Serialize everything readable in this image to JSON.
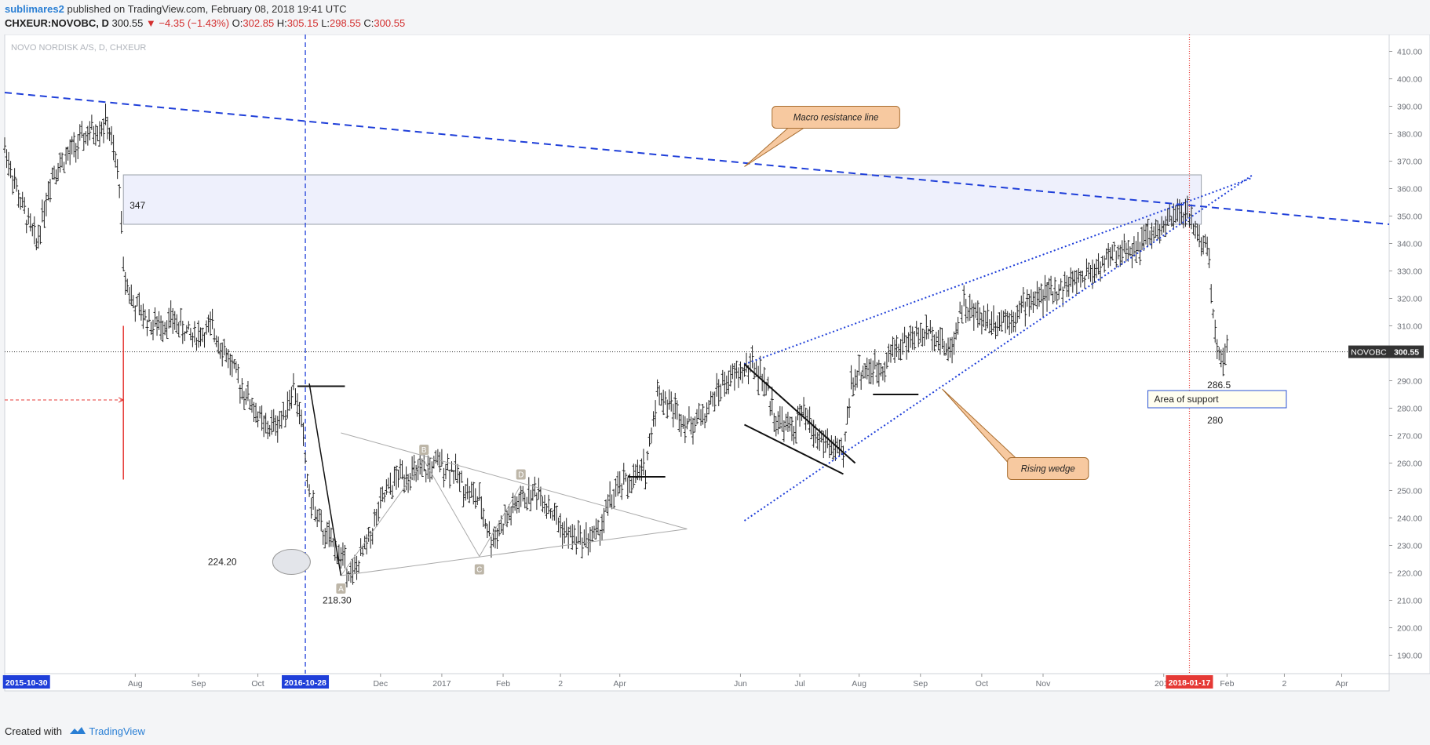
{
  "header": {
    "author": "sublimares2",
    "published": "published on TradingView.com, February 08, 2018 19:41 UTC",
    "symbol": "CHXEUR:NOVOBC, D",
    "last": "300.55",
    "change_arrow": "▼",
    "change": "−4.35 (−1.43%)",
    "o_label": "O:",
    "o": "302.85",
    "h_label": "H:",
    "h": "305.15",
    "l_label": "L:",
    "l": "298.55",
    "c_label": "C:",
    "c": "300.55"
  },
  "footer": {
    "created": "Created with",
    "brand": "TradingView",
    "logo_icon": "tradingview-logo-icon"
  },
  "colors": {
    "trend_blue": "#1f3fd9",
    "annotation_fill": "#f7c9a0",
    "band_fill": "#eef0fc",
    "red": "#e53935",
    "bars": "#222222"
  },
  "chart_data": {
    "type": "ohlc",
    "title": "NOVO NORDISK A/S, D, CHXEUR",
    "ylim": [
      185,
      415
    ],
    "y_ticks": [
      190,
      200,
      210,
      220,
      230,
      240,
      250,
      260,
      270,
      280,
      290,
      300,
      310,
      320,
      330,
      340,
      350,
      360,
      370,
      380,
      390,
      400,
      410
    ],
    "y_tick_labels": [
      "190.00",
      "200.00",
      "210.00",
      "220.00",
      "230.00",
      "240.00",
      "250.00",
      "260.00",
      "270.00",
      "280.00",
      "290.00",
      "300.00",
      "310.00",
      "320.00",
      "330.00",
      "340.00",
      "350.00",
      "360.00",
      "370.00",
      "380.00",
      "390.00",
      "400.00",
      "410.00"
    ],
    "x_ticks": [
      {
        "label": "Aug",
        "d": 66
      },
      {
        "label": "Sep",
        "d": 98
      },
      {
        "label": "Oct",
        "d": 128
      },
      {
        "label": "Dec",
        "d": 190
      },
      {
        "label": "2017",
        "d": 221
      },
      {
        "label": "Feb",
        "d": 252
      },
      {
        "label": "2",
        "d": 281
      },
      {
        "label": "Apr",
        "d": 311
      },
      {
        "label": "Jun",
        "d": 372
      },
      {
        "label": "Jul",
        "d": 402
      },
      {
        "label": "Aug",
        "d": 432
      },
      {
        "label": "Sep",
        "d": 463
      },
      {
        "label": "Oct",
        "d": 494
      },
      {
        "label": "Nov",
        "d": 525
      },
      {
        "label": "2018",
        "d": 586
      },
      {
        "label": "Feb",
        "d": 618
      },
      {
        "label": "2",
        "d": 647
      },
      {
        "label": "Apr",
        "d": 676
      }
    ],
    "x_range_days": [
      0,
      700
    ],
    "date_flags": [
      {
        "label": "2015-10-30",
        "d": 11,
        "color": "#1f3fd9"
      },
      {
        "label": "2016-10-28",
        "d": 152,
        "color": "#1f3fd9"
      },
      {
        "label": "2018-01-17",
        "d": 599,
        "color": "#e53935"
      }
    ],
    "price_marker": {
      "label": "NOVOBC",
      "value": "300.55",
      "y": 300.55
    },
    "waypoints": [
      [
        0,
        375
      ],
      [
        8,
        355
      ],
      [
        16,
        340
      ],
      [
        24,
        366
      ],
      [
        32,
        372
      ],
      [
        42,
        380
      ],
      [
        52,
        384
      ],
      [
        58,
        362
      ],
      [
        60,
        330
      ],
      [
        65,
        318
      ],
      [
        75,
        310
      ],
      [
        85,
        312
      ],
      [
        95,
        306
      ],
      [
        105,
        309
      ],
      [
        112,
        300
      ],
      [
        118,
        290
      ],
      [
        126,
        280
      ],
      [
        132,
        272
      ],
      [
        140,
        276
      ],
      [
        146,
        288
      ],
      [
        150,
        275
      ],
      [
        154,
        248
      ],
      [
        160,
        236
      ],
      [
        166,
        230
      ],
      [
        172,
        224
      ],
      [
        176,
        219
      ],
      [
        184,
        232
      ],
      [
        192,
        248
      ],
      [
        200,
        256
      ],
      [
        210,
        256
      ],
      [
        220,
        260
      ],
      [
        226,
        258
      ],
      [
        234,
        250
      ],
      [
        240,
        246
      ],
      [
        246,
        232
      ],
      [
        252,
        238
      ],
      [
        260,
        246
      ],
      [
        270,
        250
      ],
      [
        276,
        243
      ],
      [
        284,
        234
      ],
      [
        292,
        232
      ],
      [
        300,
        234
      ],
      [
        306,
        246
      ],
      [
        312,
        252
      ],
      [
        318,
        254
      ],
      [
        324,
        258
      ],
      [
        330,
        286
      ],
      [
        338,
        280
      ],
      [
        346,
        274
      ],
      [
        354,
        278
      ],
      [
        362,
        288
      ],
      [
        370,
        292
      ],
      [
        378,
        296
      ],
      [
        384,
        290
      ],
      [
        390,
        276
      ],
      [
        398,
        272
      ],
      [
        404,
        278
      ],
      [
        410,
        270
      ],
      [
        418,
        266
      ],
      [
        424,
        262
      ],
      [
        428,
        290
      ],
      [
        434,
        294
      ],
      [
        442,
        294
      ],
      [
        450,
        302
      ],
      [
        460,
        306
      ],
      [
        470,
        308
      ],
      [
        478,
        300
      ],
      [
        484,
        318
      ],
      [
        490,
        314
      ],
      [
        500,
        312
      ],
      [
        510,
        314
      ],
      [
        520,
        320
      ],
      [
        530,
        322
      ],
      [
        540,
        326
      ],
      [
        550,
        330
      ],
      [
        560,
        336
      ],
      [
        570,
        338
      ],
      [
        580,
        343
      ],
      [
        590,
        348
      ],
      [
        596,
        352
      ],
      [
        600,
        348
      ],
      [
        606,
        340
      ],
      [
        609,
        336
      ],
      [
        610,
        320
      ],
      [
        612,
        308
      ],
      [
        615,
        298
      ],
      [
        618,
        300
      ]
    ],
    "annotations": {
      "band": {
        "x0": 60,
        "x1": 605,
        "y0": 347,
        "y1": 365,
        "label": "347"
      },
      "resistance": {
        "x0": 0,
        "y0": 395,
        "x1": 700,
        "y1": 347
      },
      "rising_wedge_upper": {
        "x0": 374,
        "y0": 296,
        "x1": 631,
        "y1": 364
      },
      "rising_wedge_lower": {
        "x0": 374,
        "y0": 239,
        "x1": 631,
        "y1": 365
      },
      "triangle": {
        "x0": 170,
        "x1": 345,
        "top": 271,
        "bottom": 219,
        "apex": 236
      },
      "abcd": [
        {
          "label": "A",
          "d": 170,
          "y": 219
        },
        {
          "label": "B",
          "d": 212,
          "y": 261
        },
        {
          "label": "C",
          "d": 240,
          "y": 226
        },
        {
          "label": "D",
          "d": 261,
          "y": 252
        }
      ],
      "callouts": [
        {
          "text": "Macro resistance line",
          "d": 388,
          "y": 386,
          "tip_d": 374,
          "tip_y": 368
        },
        {
          "text": "Rising wedge",
          "d": 507,
          "y": 258,
          "tip_d": 474,
          "tip_y": 287
        }
      ],
      "support_box": {
        "text": "Area of support",
        "top_value": "286.5",
        "bottom_value": "280",
        "d0": 578,
        "d1": 648,
        "y": 283
      },
      "low_labels": [
        {
          "text": "224.20",
          "d": 110,
          "y": 224
        },
        {
          "text": "218.30",
          "d": 168,
          "y": 210
        }
      ],
      "ellipse": {
        "d": 145,
        "y": 224
      }
    }
  }
}
